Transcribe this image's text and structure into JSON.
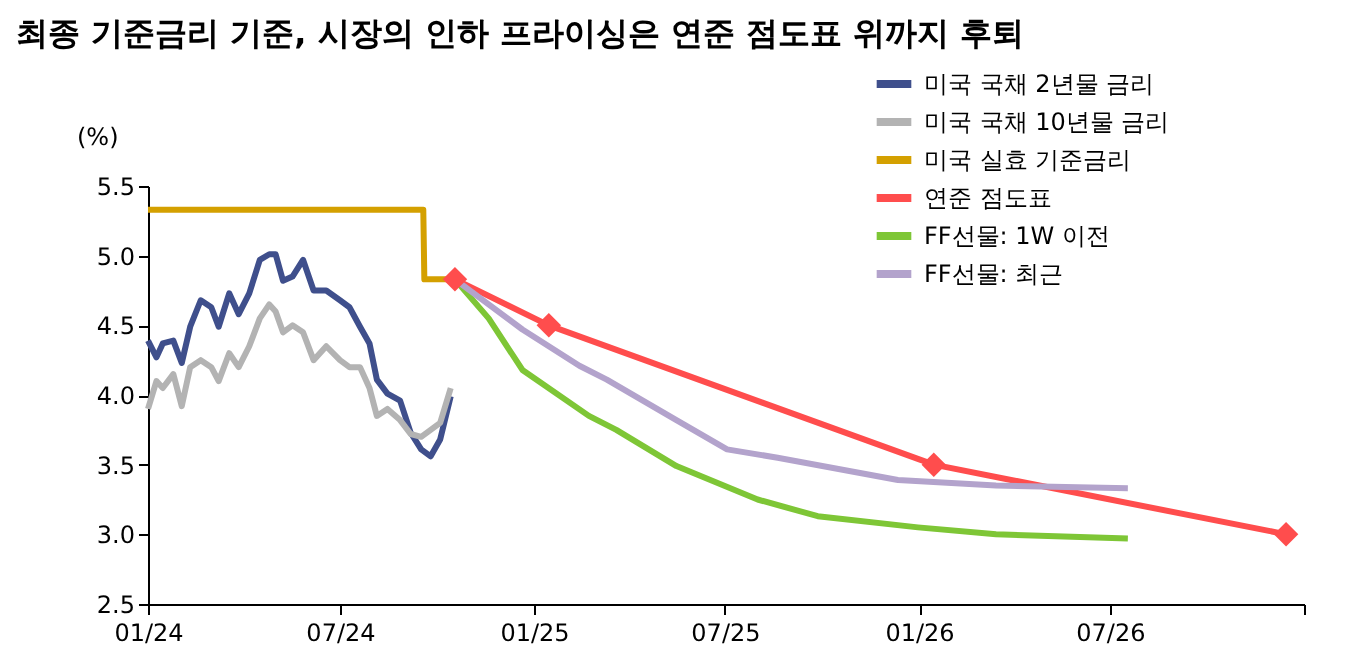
{
  "chart_data": {
    "type": "line",
    "title": "최종 기준금리 기준, 시장의 인하 프라이싱은 연준 점도표 위까지 후퇴",
    "ylabel": "(%)",
    "ylim": [
      2.5,
      5.5
    ],
    "yticks": [
      {
        "value": 2.5,
        "label": "2.5"
      },
      {
        "value": 3,
        "label": "3.0"
      },
      {
        "value": 3.5,
        "label": "3.5"
      },
      {
        "value": 4,
        "label": "4.0"
      },
      {
        "value": 4.5,
        "label": "4.5"
      },
      {
        "value": 5,
        "label": "5.0"
      },
      {
        "value": 5.5,
        "label": "5.5"
      }
    ],
    "xlim": [
      "2024-01-01",
      "2027-01-01"
    ],
    "xticks": [
      {
        "value": "2024-01-01",
        "label": "01/24"
      },
      {
        "value": "2024-07-01",
        "label": "07/24"
      },
      {
        "value": "2025-01-01",
        "label": "01/25"
      },
      {
        "value": "2025-07-01",
        "label": "07/25"
      },
      {
        "value": "2026-01-01",
        "label": "01/26"
      },
      {
        "value": "2026-07-01",
        "label": "07/26"
      },
      {
        "value": "2027-01-01",
        "label": null
      }
    ],
    "grid": false,
    "legend": "top right",
    "line_style": "solid",
    "series": [
      {
        "name": "미국 국채 2년물 금리",
        "color": "#3f4f8c",
        "marker": "none",
        "x": [
          "2024-01-01",
          "2024-01-09",
          "2024-01-15",
          "2024-01-25",
          "2024-02-02",
          "2024-02-10",
          "2024-02-20",
          "2024-03-01",
          "2024-03-08",
          "2024-03-18",
          "2024-03-27",
          "2024-04-06",
          "2024-04-16",
          "2024-04-25",
          "2024-05-01",
          "2024-05-08",
          "2024-05-17",
          "2024-05-27",
          "2024-06-06",
          "2024-06-18",
          "2024-07-01",
          "2024-07-10",
          "2024-07-20",
          "2024-07-29",
          "2024-08-05",
          "2024-08-15",
          "2024-08-27",
          "2024-09-06",
          "2024-09-16",
          "2024-09-25",
          "2024-10-04",
          "2024-10-14"
        ],
        "values": [
          4.39,
          4.27,
          4.37,
          4.39,
          4.23,
          4.49,
          4.68,
          4.63,
          4.49,
          4.73,
          4.58,
          4.73,
          4.97,
          5.01,
          5.01,
          4.82,
          4.85,
          4.97,
          4.75,
          4.75,
          4.68,
          4.63,
          4.49,
          4.37,
          4.11,
          4.01,
          3.96,
          3.73,
          3.61,
          3.56,
          3.68,
          3.99
        ]
      },
      {
        "name": "미국 국채 10년물 금리",
        "color": "#b3b3b3",
        "marker": "none",
        "x": [
          "2024-01-01",
          "2024-01-09",
          "2024-01-15",
          "2024-01-25",
          "2024-02-02",
          "2024-02-10",
          "2024-02-20",
          "2024-03-01",
          "2024-03-08",
          "2024-03-18",
          "2024-03-27",
          "2024-04-06",
          "2024-04-16",
          "2024-04-25",
          "2024-05-01",
          "2024-05-08",
          "2024-05-17",
          "2024-05-27",
          "2024-06-06",
          "2024-06-18",
          "2024-07-01",
          "2024-07-10",
          "2024-07-20",
          "2024-07-29",
          "2024-08-05",
          "2024-08-15",
          "2024-08-27",
          "2024-09-06",
          "2024-09-16",
          "2024-09-25",
          "2024-10-04",
          "2024-10-14"
        ],
        "values": [
          3.9,
          4.1,
          4.05,
          4.15,
          3.92,
          4.2,
          4.25,
          4.2,
          4.1,
          4.3,
          4.2,
          4.35,
          4.55,
          4.65,
          4.6,
          4.45,
          4.5,
          4.45,
          4.25,
          4.35,
          4.25,
          4.2,
          4.2,
          4.05,
          3.85,
          3.9,
          3.82,
          3.72,
          3.7,
          3.75,
          3.8,
          4.05
        ]
      },
      {
        "name": "미국 실효 기준금리",
        "color": "#d4a000",
        "marker": "none",
        "x": [
          "2024-01-01",
          "2024-09-18",
          "2024-09-19",
          "2024-10-18"
        ],
        "values": [
          5.33,
          5.33,
          4.83,
          4.83
        ]
      },
      {
        "name": "연준 점도표",
        "color": "#ff4d4d",
        "marker": "diamond",
        "x": [
          "2024-10-18",
          "2025-01-15",
          "2026-01-15",
          "2026-12-15"
        ],
        "values": [
          4.83,
          4.5,
          3.5,
          3.0
        ]
      },
      {
        "name": "FF선물: 1W 이전",
        "color": "#7ec636",
        "marker": "none",
        "x": [
          "2024-10-18",
          "2024-11-19",
          "2024-12-21",
          "2025-02-22",
          "2025-03-20",
          "2025-05-16",
          "2025-08-01",
          "2025-09-27",
          "2025-12-31",
          "2026-03-15",
          "2026-07-18"
        ],
        "values": [
          4.83,
          4.55,
          4.18,
          3.85,
          3.75,
          3.49,
          3.25,
          3.13,
          3.05,
          3.0,
          2.97
        ]
      },
      {
        "name": "FF선물: 최근",
        "color": "#b3a3cc",
        "marker": "none",
        "x": [
          "2024-10-18",
          "2024-12-21",
          "2025-02-13",
          "2025-03-11",
          "2025-05-16",
          "2025-07-03",
          "2025-08-20",
          "2025-12-12",
          "2026-03-15",
          "2026-07-18"
        ],
        "values": [
          4.83,
          4.47,
          4.21,
          4.11,
          3.82,
          3.61,
          3.55,
          3.39,
          3.35,
          3.33
        ]
      }
    ]
  }
}
